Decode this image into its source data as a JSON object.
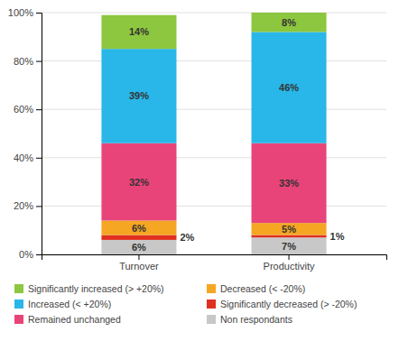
{
  "chart_data": {
    "type": "bar",
    "stacked": true,
    "categories": [
      "Turnover",
      "Productivity"
    ],
    "series": [
      {
        "name": "Non respondants",
        "color": "#c8c8c8",
        "values": [
          6,
          7
        ],
        "value_labels": [
          "6%",
          "7%"
        ]
      },
      {
        "name": "Significantly decreased (> -20%)",
        "color": "#e03020",
        "values": [
          2,
          1
        ],
        "value_labels": [
          "2%",
          "1%"
        ]
      },
      {
        "name": "Decreased (< -20%)",
        "color": "#f5a623",
        "values": [
          6,
          5
        ],
        "value_labels": [
          "6%",
          "5%"
        ]
      },
      {
        "name": "Remained unchanged",
        "color": "#e8447a",
        "values": [
          32,
          33
        ],
        "value_labels": [
          "32%",
          "33%"
        ]
      },
      {
        "name": "Increased (< +20%)",
        "color": "#29b6e8",
        "values": [
          39,
          46
        ],
        "value_labels": [
          "39%",
          "46%"
        ]
      },
      {
        "name": "Significantly increased (> +20%)",
        "color": "#8dc63f",
        "values": [
          14,
          8
        ],
        "value_labels": [
          "14%",
          "8%"
        ]
      }
    ],
    "ylim": [
      0,
      100
    ],
    "yticks": [
      {
        "value": 0,
        "label": "0%"
      },
      {
        "value": 20,
        "label": "20%"
      },
      {
        "value": 40,
        "label": "40%"
      },
      {
        "value": 60,
        "label": "60%"
      },
      {
        "value": 80,
        "label": "80%"
      },
      {
        "value": 100,
        "label": "100%"
      }
    ],
    "grid": true,
    "data_labels": true,
    "legend": "bottom"
  }
}
